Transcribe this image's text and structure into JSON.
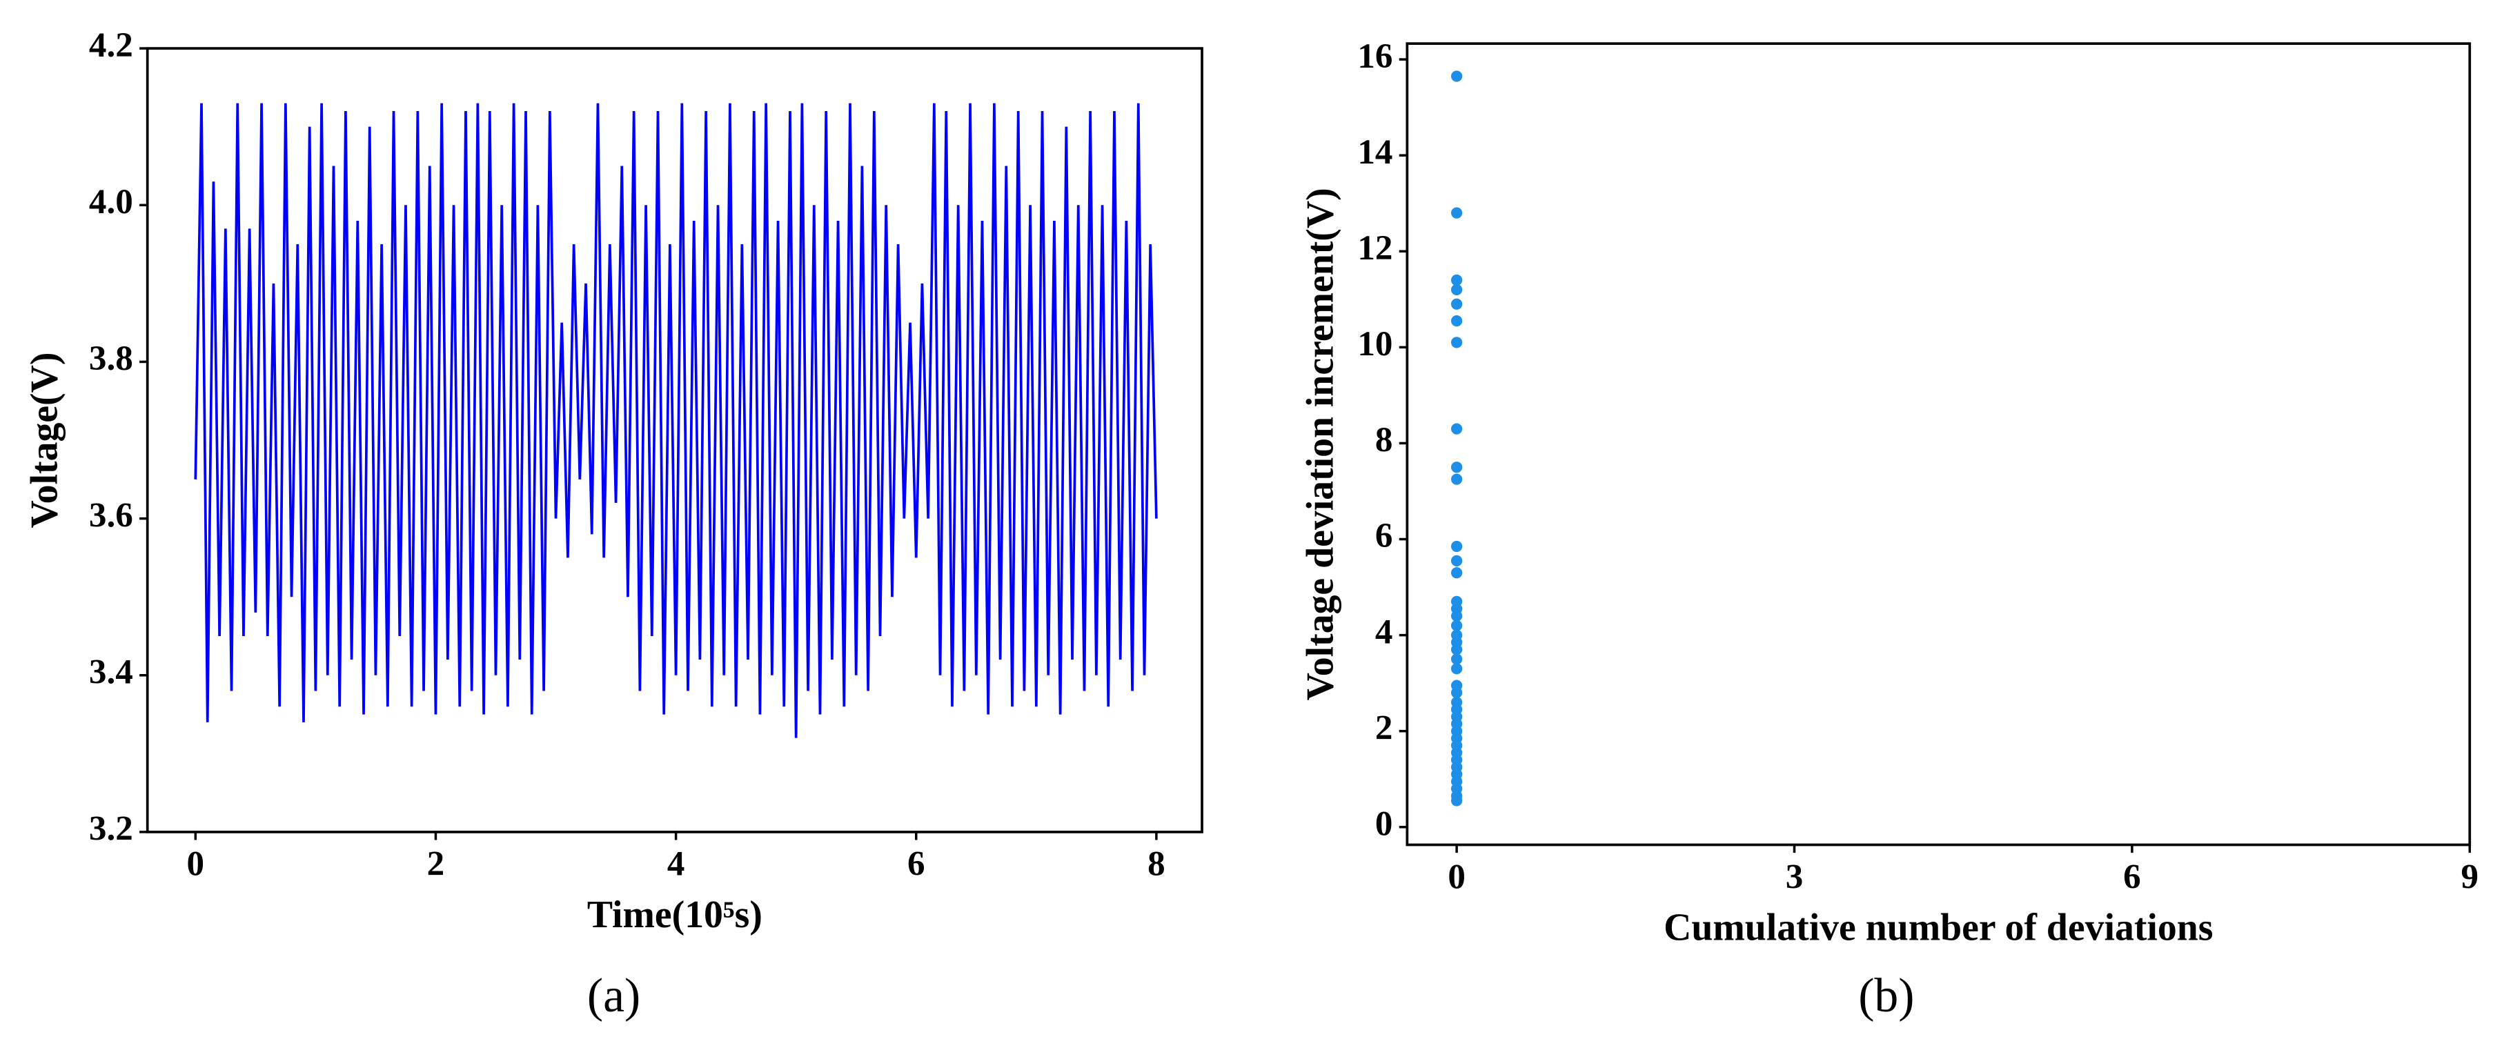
{
  "chart_data": [
    {
      "type": "line",
      "caption": "(a)",
      "xlabel": "Time(10⁵s)",
      "ylabel": "Voltage(V)",
      "color": "#0000ff",
      "xlim": [
        -0.4,
        8.38
      ],
      "xticks": [
        0,
        2,
        4,
        6,
        8
      ],
      "ylim": [
        3.2,
        4.2
      ],
      "yticks": [
        3.2,
        3.4,
        3.6,
        3.8,
        {
          "value": 4,
          "label": "4.0"
        },
        4.2
      ],
      "x": [
        0,
        0.05,
        0.1,
        0.15,
        0.2,
        0.25,
        0.3,
        0.35,
        0.4,
        0.45,
        0.5,
        0.55,
        0.6,
        0.65,
        0.7,
        0.75,
        0.8,
        0.85,
        0.9,
        0.95,
        1,
        1.05,
        1.1,
        1.15,
        1.2,
        1.25,
        1.3,
        1.35,
        1.4,
        1.45,
        1.5,
        1.55,
        1.6,
        1.65,
        1.7,
        1.75,
        1.8,
        1.85,
        1.9,
        1.95,
        2,
        2.05,
        2.1,
        2.15,
        2.2,
        2.25,
        2.3,
        2.35,
        2.4,
        2.45,
        2.5,
        2.55,
        2.6,
        2.65,
        2.7,
        2.75,
        2.8,
        2.85,
        2.9,
        2.95,
        3,
        3.05,
        3.1,
        3.15,
        3.2,
        3.25,
        3.3,
        3.35,
        3.4,
        3.45,
        3.5,
        3.55,
        3.6,
        3.65,
        3.7,
        3.75,
        3.8,
        3.85,
        3.9,
        3.95,
        4,
        4.05,
        4.1,
        4.15,
        4.2,
        4.25,
        4.3,
        4.35,
        4.4,
        4.45,
        4.5,
        4.55,
        4.6,
        4.65,
        4.7,
        4.75,
        4.8,
        4.85,
        4.9,
        4.95,
        5,
        5.05,
        5.1,
        5.15,
        5.2,
        5.25,
        5.3,
        5.35,
        5.4,
        5.45,
        5.5,
        5.55,
        5.6,
        5.65,
        5.7,
        5.75,
        5.8,
        5.85,
        5.9,
        5.95,
        6,
        6.05,
        6.1,
        6.15,
        6.2,
        6.25,
        6.3,
        6.35,
        6.4,
        6.45,
        6.5,
        6.55,
        6.6,
        6.65,
        6.7,
        6.75,
        6.8,
        6.85,
        6.9,
        6.95,
        7,
        7.05,
        7.1,
        7.15,
        7.2,
        7.25,
        7.3,
        7.35,
        7.4,
        7.45,
        7.5,
        7.55,
        7.6,
        7.65,
        7.7,
        7.75,
        7.8,
        7.85,
        7.9,
        7.95,
        8
      ],
      "values": [
        3.65,
        4.13,
        3.34,
        4.03,
        3.45,
        3.97,
        3.38,
        4.13,
        3.45,
        3.97,
        3.48,
        4.13,
        3.45,
        3.9,
        3.36,
        4.13,
        3.5,
        3.95,
        3.34,
        4.1,
        3.38,
        4.13,
        3.4,
        4.05,
        3.36,
        4.12,
        3.42,
        3.98,
        3.35,
        4.1,
        3.4,
        3.95,
        3.36,
        4.12,
        3.45,
        4.0,
        3.36,
        4.12,
        3.38,
        4.05,
        3.35,
        4.13,
        3.42,
        4.0,
        3.36,
        4.12,
        3.38,
        4.13,
        3.35,
        4.12,
        3.4,
        4.0,
        3.36,
        4.13,
        3.42,
        4.12,
        3.35,
        4.0,
        3.38,
        4.12,
        3.6,
        3.85,
        3.55,
        3.95,
        3.65,
        3.9,
        3.58,
        4.13,
        3.55,
        3.95,
        3.62,
        4.05,
        3.5,
        4.12,
        3.38,
        4.0,
        3.45,
        4.12,
        3.35,
        3.95,
        3.4,
        4.13,
        3.38,
        3.98,
        3.42,
        4.12,
        3.36,
        4.0,
        3.4,
        4.13,
        3.36,
        3.95,
        3.42,
        4.12,
        3.35,
        4.13,
        3.4,
        3.98,
        3.36,
        4.12,
        3.32,
        4.13,
        3.38,
        4.0,
        3.35,
        4.12,
        3.42,
        3.98,
        3.36,
        4.13,
        3.4,
        4.05,
        3.38,
        4.12,
        3.45,
        4.0,
        3.5,
        3.95,
        3.6,
        3.85,
        3.55,
        3.9,
        3.6,
        4.13,
        3.4,
        4.12,
        3.36,
        4.0,
        3.38,
        4.13,
        3.4,
        3.98,
        3.35,
        4.13,
        3.42,
        4.05,
        3.36,
        4.12,
        3.38,
        4.0,
        3.36,
        4.12,
        3.4,
        3.98,
        3.35,
        4.1,
        3.42,
        4.0,
        3.38,
        4.12,
        3.4,
        4.0,
        3.36,
        4.12,
        3.42,
        3.98,
        3.38,
        4.13,
        3.4,
        3.95,
        3.6
      ]
    },
    {
      "type": "scatter",
      "caption": "(b)",
      "xlabel": "Cumulative number of deviations",
      "ylabel": "Voltage deviation increment(V)",
      "color": "#1e8fe8",
      "xlim": [
        -0.44,
        9
      ],
      "xticks": [
        0,
        3,
        6,
        9
      ],
      "ylim": [
        -0.37,
        16.33
      ],
      "yticks": [
        0,
        2,
        4,
        6,
        8,
        10,
        12,
        14,
        16
      ],
      "x": [
        0,
        0,
        0,
        0,
        0,
        0,
        0,
        0,
        0,
        0,
        0,
        0,
        0,
        0,
        0,
        0,
        0,
        0,
        0,
        0,
        0,
        0,
        0,
        0,
        0,
        0,
        0,
        0,
        0,
        0,
        0,
        0,
        0,
        0,
        0,
        0,
        0,
        0,
        0
      ],
      "values": [
        15.65,
        12.8,
        11.4,
        11.2,
        10.9,
        10.55,
        10.1,
        8.3,
        7.5,
        7.25,
        5.85,
        5.55,
        5.3,
        4.7,
        4.55,
        4.4,
        4.2,
        4.0,
        3.85,
        3.7,
        3.5,
        3.3,
        2.95,
        2.8,
        2.6,
        2.45,
        2.3,
        2.15,
        2.0,
        1.85,
        1.7,
        1.55,
        1.4,
        1.25,
        1.1,
        0.95,
        0.8,
        0.65,
        0.55
      ]
    }
  ]
}
